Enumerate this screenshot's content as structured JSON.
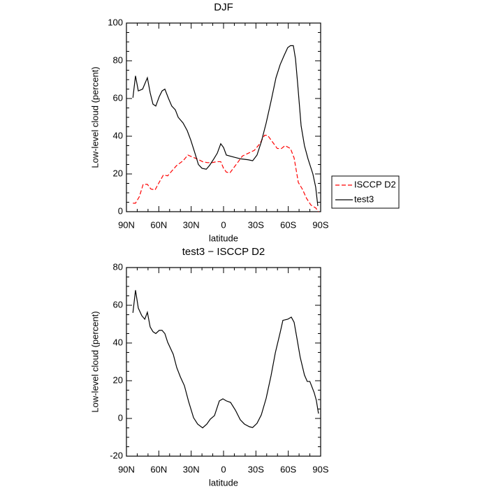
{
  "chart_data": [
    {
      "type": "line",
      "title": "DJF",
      "xlabel": "latitude",
      "ylabel": "Low-level cloud (percent)",
      "xlim": [
        90,
        -90
      ],
      "ylim": [
        0,
        100
      ],
      "xticks": [
        {
          "value": 90,
          "label": "90N"
        },
        {
          "value": 60,
          "label": "60N"
        },
        {
          "value": 30,
          "label": "30N"
        },
        0,
        {
          "value": -30,
          "label": "30S"
        },
        {
          "value": -60,
          "label": "60S"
        },
        {
          "value": -90,
          "label": "90S"
        }
      ],
      "yticks": [
        0,
        20,
        40,
        60,
        80,
        100
      ],
      "legend": "right",
      "series": [
        {
          "name": "ISCCP D2",
          "color": "#ff0000",
          "line_style": "dashed",
          "x": [
            84,
            81.6,
            78,
            74.5,
            70.6,
            67.3,
            63.5,
            60.2,
            55.7,
            51.8,
            47.3,
            43.4,
            37.5,
            33,
            29,
            24.6,
            19.4,
            15,
            10.4,
            6.5,
            2.6,
            0,
            -2.6,
            -5.8,
            -8.4,
            -13,
            -17.5,
            -23,
            -28.5,
            -33.6,
            -38,
            -40.8,
            -45.3,
            -49.8,
            -53.7,
            -57,
            -62,
            -65.4,
            -69.3,
            -73,
            -77,
            -81,
            -85.4,
            -88
          ],
          "values": [
            4.5,
            4.5,
            8,
            14.5,
            14.5,
            12,
            11.5,
            15,
            19.5,
            19,
            22,
            24.5,
            27,
            30,
            29,
            28,
            26.5,
            26,
            26,
            26.5,
            26.5,
            23,
            21,
            20.5,
            22.5,
            26,
            29.5,
            31,
            32.5,
            36,
            40.5,
            40.5,
            37,
            33.5,
            33.5,
            35,
            33.5,
            28.5,
            15.5,
            12,
            7,
            3.5,
            2,
            0
          ]
        },
        {
          "name": "test3",
          "color": "#000000",
          "line_style": "solid",
          "x": [
            84,
            81.6,
            79,
            75,
            70.6,
            68,
            65.4,
            62.8,
            59.6,
            57,
            54.4,
            51,
            48,
            44.7,
            42,
            37.5,
            33.7,
            30.4,
            26.5,
            23.3,
            20,
            16,
            13,
            9,
            5.8,
            2.6,
            0,
            -2.6,
            -9,
            -16,
            -23,
            -27,
            -31,
            -35,
            -39.5,
            -44,
            -48.6,
            -52.5,
            -56.3,
            -59.5,
            -62,
            -64.7,
            -66.7,
            -68.6,
            -71.9,
            -75,
            -78.3,
            -82.8,
            -85.4,
            -87.4
          ],
          "values": [
            60.4,
            72,
            64,
            65,
            71,
            63,
            57,
            56,
            61,
            64,
            65,
            60,
            56,
            54,
            50,
            47,
            43,
            38,
            31,
            25,
            23,
            22.5,
            24.5,
            28,
            31,
            36,
            34,
            30,
            29,
            28,
            27.5,
            27,
            30,
            37,
            47,
            58.5,
            71,
            78,
            83,
            87,
            88,
            88,
            81,
            68.5,
            45.5,
            35,
            28,
            20,
            13,
            3
          ]
        }
      ]
    },
    {
      "type": "line",
      "title": "test3 − ISCCP D2",
      "xlabel": "latitude",
      "ylabel": "Low-level cloud (percent)",
      "xlim": [
        90,
        -90
      ],
      "ylim": [
        -20,
        80
      ],
      "xticks": [
        {
          "value": 90,
          "label": "90N"
        },
        {
          "value": 60,
          "label": "60N"
        },
        {
          "value": 30,
          "label": "30N"
        },
        0,
        {
          "value": -30,
          "label": "30S"
        },
        {
          "value": -60,
          "label": "60S"
        },
        {
          "value": -90,
          "label": "90S"
        }
      ],
      "yticks": [
        -20,
        0,
        20,
        40,
        60,
        80
      ],
      "series": [
        {
          "color": "#000000",
          "line_style": "solid",
          "x": [
            84,
            81.6,
            79,
            75.8,
            73,
            70.6,
            68,
            65.4,
            62.8,
            59.6,
            57,
            54.4,
            51.8,
            46.6,
            43.4,
            40,
            36.3,
            32.4,
            27.8,
            24,
            19.4,
            15.5,
            12.3,
            8.4,
            3.9,
            0.6,
            -2.6,
            -6.5,
            -11,
            -15.5,
            -19.4,
            -24,
            -27,
            -31,
            -35,
            -39.5,
            -44,
            -48,
            -52.5,
            -55,
            -59.5,
            -62.8,
            -65.4,
            -68,
            -71,
            -75,
            -77.6,
            -80,
            -84,
            -86,
            -88
          ],
          "values": [
            56,
            68,
            58.5,
            54.5,
            52.6,
            56.3,
            48.5,
            46,
            45,
            46.7,
            46.7,
            45,
            40.4,
            34,
            27,
            22,
            17.4,
            9,
            0.4,
            -3,
            -5,
            -3,
            -0.4,
            1.5,
            9.3,
            10.4,
            9.3,
            8.5,
            4.4,
            -0.7,
            -3,
            -4.4,
            -4.8,
            -2.6,
            1.9,
            10.7,
            22.6,
            34.8,
            45.6,
            52,
            52.6,
            53.7,
            51,
            42.6,
            32.6,
            23,
            19.6,
            19.6,
            13.7,
            9.6,
            2.6
          ]
        }
      ]
    }
  ]
}
